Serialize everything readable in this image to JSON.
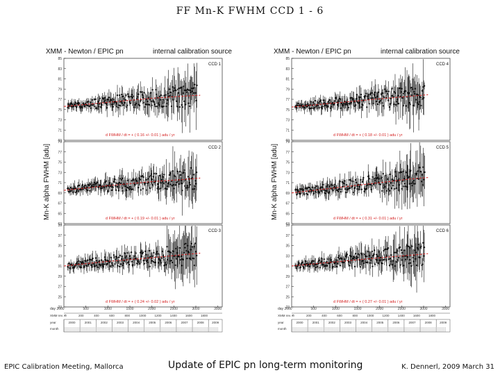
{
  "slide": {
    "title": "FF    Mn-K    FWHM    CCD 1 - 6",
    "footer_left": "EPIC Calibration Meeting, Mallorca",
    "footer_center": "Update of EPIC pn long-term monitoring",
    "footer_right": "K. Dennerl, 2009 March 31"
  },
  "colors": {
    "trend": "#d42020",
    "data": "#111111",
    "panel_border": "#444444"
  },
  "chart_data": [
    {
      "type": "scatter",
      "header_left": "XMM - Newton  /  EPIC pn",
      "header_right": "internal calibration source",
      "ylabel": "Mn-K alpha  FWHM  [adu]",
      "x_axis": {
        "row_day": {
          "label": "day 2000",
          "ticks": [
            "500",
            "1000",
            "1500",
            "2000",
            "2500",
            "3000",
            "3500"
          ]
        },
        "row_rev": {
          "label": "XMM rev. #",
          "ticks": [
            "0",
            "200",
            "400",
            "600",
            "800",
            "1000",
            "1200",
            "1400",
            "1600",
            "1800"
          ]
        },
        "row_year": {
          "label": "year",
          "ticks": [
            "2000",
            "2001",
            "2002",
            "2003",
            "2004",
            "2005",
            "2006",
            "2007",
            "2008",
            "2009"
          ]
        },
        "row_month": {
          "label": "month"
        }
      },
      "panels": [
        {
          "ccd_label": "CCD 1",
          "slope_text": "d FWHM / dt = + ( 0.16 +/- 0.01 ) adu / yr",
          "y_ticks": [
            "69",
            "71",
            "73",
            "75",
            "77",
            "79",
            "81",
            "83",
            "85"
          ],
          "trend": {
            "x": [
              0,
              1000,
              2000,
              2700,
              3100
            ],
            "y": [
              75.6,
              76.4,
              77.2,
              77.6,
              77.8
            ]
          }
        },
        {
          "ccd_label": "CCD 2",
          "slope_text": "d FWHM / dt = + ( 0.19 +/- 0.01 ) adu / yr",
          "y_ticks": [
            "63",
            "65",
            "67",
            "69",
            "71",
            "73",
            "75",
            "77",
            "79"
          ],
          "trend": {
            "x": [
              0,
              1000,
              2000,
              2700,
              3100
            ],
            "y": [
              69.5,
              70.4,
              71.2,
              71.6,
              71.9
            ]
          }
        },
        {
          "ccd_label": "CCD 3",
          "slope_text": "d FWHM / dt = + ( 0.24 +/- 0.02 ) adu / yr",
          "y_ticks": [
            "23",
            "25",
            "27",
            "29",
            "31",
            "33",
            "35",
            "37",
            "39"
          ],
          "trend": {
            "x": [
              0,
              1000,
              2000,
              2700,
              3100
            ],
            "y": [
              31.0,
              31.9,
              32.6,
              33.2,
              33.5
            ]
          }
        }
      ]
    },
    {
      "type": "scatter",
      "header_left": "XMM - Newton  /  EPIC pn",
      "header_right": "internal calibration source",
      "ylabel": "Mn-K alpha  FWHM  [adu]",
      "x_axis": {
        "row_day": {
          "label": "day 2000",
          "ticks": [
            "500",
            "1000",
            "1500",
            "2000",
            "2500",
            "3000",
            "3500"
          ]
        },
        "row_rev": {
          "label": "XMM rev. #",
          "ticks": [
            "0",
            "200",
            "400",
            "600",
            "800",
            "1000",
            "1200",
            "1400",
            "1600",
            "1800"
          ]
        },
        "row_year": {
          "label": "year",
          "ticks": [
            "2000",
            "2001",
            "2002",
            "2003",
            "2004",
            "2005",
            "2006",
            "2007",
            "2008",
            "2009"
          ]
        },
        "row_month": {
          "label": "month"
        }
      },
      "panels": [
        {
          "ccd_label": "CCD 4",
          "slope_text": "d FWHM / dt = + ( 0.18 +/- 0.01 ) adu / yr",
          "y_ticks": [
            "69",
            "71",
            "73",
            "75",
            "77",
            "79",
            "81",
            "83",
            "85"
          ],
          "trend": {
            "x": [
              0,
              1000,
              2000,
              2700,
              3100
            ],
            "y": [
              75.5,
              76.3,
              77.1,
              77.6,
              77.9
            ]
          }
        },
        {
          "ccd_label": "CCD 5",
          "slope_text": "d FWHM / dt = + ( 0.31 +/- 0.01 ) adu / yr",
          "y_ticks": [
            "63",
            "65",
            "67",
            "69",
            "71",
            "73",
            "75",
            "77",
            "79"
          ],
          "trend": {
            "x": [
              0,
              1000,
              2000,
              2700,
              3100
            ],
            "y": [
              69.0,
              70.0,
              71.0,
              71.7,
              72.0
            ]
          }
        },
        {
          "ccd_label": "CCD 6",
          "slope_text": "d FWHM / dt = + ( 0.27 +/- 0.01 ) adu / yr",
          "y_ticks": [
            "23",
            "25",
            "27",
            "29",
            "31",
            "33",
            "35",
            "37",
            "39"
          ],
          "trend": {
            "x": [
              0,
              1000,
              2000,
              2700,
              3100
            ],
            "y": [
              31.0,
              31.8,
              32.6,
              33.1,
              33.4
            ]
          }
        }
      ]
    }
  ]
}
